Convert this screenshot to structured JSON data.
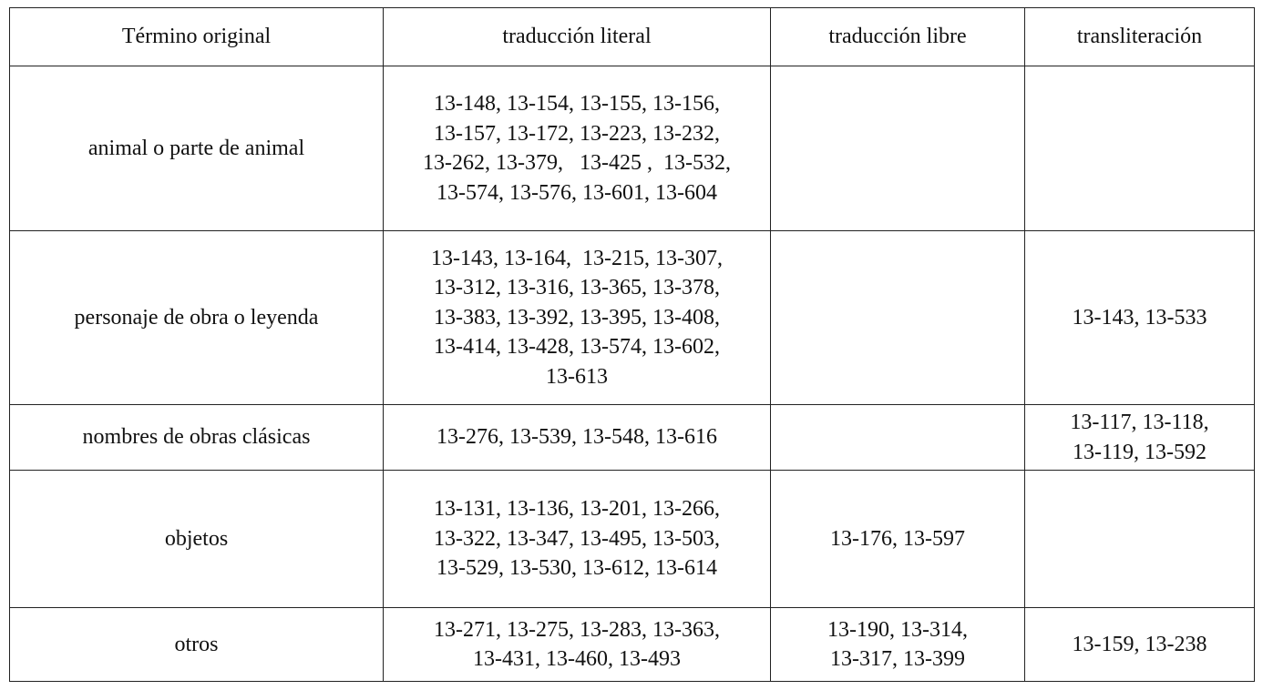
{
  "table": {
    "header": [
      "Término original",
      "traducción literal",
      "traducción libre",
      "transliteración"
    ],
    "rows": [
      [
        [
          "animal o parte de animal"
        ],
        [
          "13-148, 13-154, 13-155, 13-156,",
          "13-157, 13-172, 13-223, 13-232,",
          "13-262, 13-379,   13-425 ,  13-532,",
          "13-574, 13-576, 13-601, 13-604"
        ],
        null,
        null
      ],
      [
        [
          "personaje de obra o leyenda"
        ],
        [
          "13-143, 13-164,  13-215, 13-307,",
          "13-312, 13-316, 13-365, 13-378,",
          "13-383, 13-392, 13-395, 13-408,",
          "13-414, 13-428, 13-574, 13-602,",
          "13-613"
        ],
        null,
        [
          "13-143, 13-533"
        ]
      ],
      [
        [
          "nombres de obras clásicas"
        ],
        [
          "13-276, 13-539, 13-548, 13-616"
        ],
        null,
        [
          "13-117, 13-118,",
          "13-119, 13-592"
        ]
      ],
      [
        [
          "objetos"
        ],
        [
          "13-131, 13-136, 13-201, 13-266,",
          "13-322, 13-347, 13-495, 13-503,",
          "13-529, 13-530, 13-612, 13-614"
        ],
        [
          "13-176, 13-597"
        ],
        null
      ],
      [
        [
          "otros"
        ],
        [
          "13-271, 13-275, 13-283, 13-363,",
          "13-431, 13-460, 13-493"
        ],
        [
          "13-190, 13-314,",
          "13-317, 13-399"
        ],
        [
          "13-159, 13-238"
        ]
      ]
    ]
  }
}
